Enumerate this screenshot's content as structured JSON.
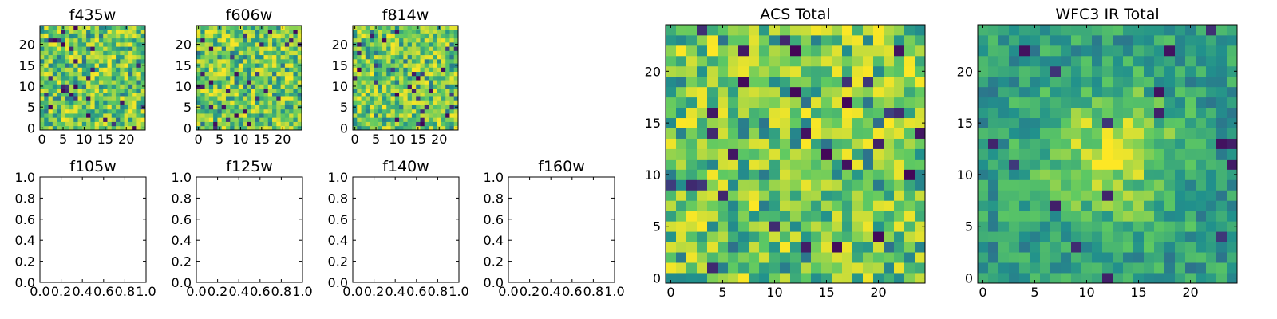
{
  "chart_data": [
    {
      "id": "f435w",
      "type": "heatmap",
      "title": "f435w",
      "grid": false,
      "colormap": "viridis",
      "description_values": "25x25 image of pixel values, random field",
      "xlim": [
        -0.5,
        24.5
      ],
      "ylim": [
        -0.5,
        24.5
      ],
      "xticks": [
        0,
        5,
        10,
        15,
        20
      ],
      "yticks": [
        0,
        5,
        10,
        15,
        20
      ],
      "xticklabels": [
        "0",
        "5",
        "10",
        "15",
        "20"
      ],
      "yticklabels": [
        "0",
        "5",
        "10",
        "15",
        "20"
      ],
      "seed": 11,
      "smooth": 0,
      "vmin": 0.0,
      "vmax": 1.0
    },
    {
      "id": "f606w",
      "type": "heatmap",
      "title": "f606w",
      "grid": false,
      "colormap": "viridis",
      "xlim": [
        -0.5,
        24.5
      ],
      "ylim": [
        -0.5,
        24.5
      ],
      "xticks": [
        0,
        5,
        10,
        15,
        20
      ],
      "yticks": [
        0,
        5,
        10,
        15,
        20
      ],
      "xticklabels": [
        "0",
        "5",
        "10",
        "15",
        "20"
      ],
      "yticklabels": [
        "0",
        "5",
        "10",
        "15",
        "20"
      ],
      "seed": 23,
      "smooth": 0,
      "vmin": 0.0,
      "vmax": 1.0
    },
    {
      "id": "f814w",
      "type": "heatmap",
      "title": "f814w",
      "grid": false,
      "colormap": "viridis",
      "xlim": [
        -0.5,
        24.5
      ],
      "ylim": [
        -0.5,
        24.5
      ],
      "xticks": [
        0,
        5,
        10,
        15,
        20
      ],
      "yticks": [
        0,
        5,
        10,
        15,
        20
      ],
      "xticklabels": [
        "0",
        "5",
        "10",
        "15",
        "20"
      ],
      "yticklabels": [
        "0",
        "5",
        "10",
        "15",
        "20"
      ],
      "seed": 37,
      "smooth": 0,
      "vmin": 0.0,
      "vmax": 1.0
    },
    {
      "id": "f105w",
      "type": "scatter",
      "title": "f105w",
      "points": [],
      "grid": false,
      "xlim": [
        0.0,
        1.0
      ],
      "ylim": [
        0.0,
        1.0
      ],
      "xticks": [
        0.0,
        0.2,
        0.4,
        0.6,
        0.8,
        1.0
      ],
      "yticks": [
        0.0,
        0.2,
        0.4,
        0.6,
        0.8,
        1.0
      ],
      "xticklabels": [
        "0.0",
        "0.2",
        "0.4",
        "0.6",
        "0.8",
        "1.0"
      ],
      "yticklabels": [
        "0.0",
        "0.2",
        "0.4",
        "0.6",
        "0.8",
        "1.0"
      ]
    },
    {
      "id": "f125w",
      "type": "scatter",
      "title": "f125w",
      "points": [],
      "grid": false,
      "xlim": [
        0.0,
        1.0
      ],
      "ylim": [
        0.0,
        1.0
      ],
      "xticks": [
        0.0,
        0.2,
        0.4,
        0.6,
        0.8,
        1.0
      ],
      "yticks": [
        0.0,
        0.2,
        0.4,
        0.6,
        0.8,
        1.0
      ],
      "xticklabels": [
        "0.0",
        "0.2",
        "0.4",
        "0.6",
        "0.8",
        "1.0"
      ],
      "yticklabels": [
        "0.0",
        "0.2",
        "0.4",
        "0.6",
        "0.8",
        "1.0"
      ]
    },
    {
      "id": "f140w",
      "type": "scatter",
      "title": "f140w",
      "points": [],
      "grid": false,
      "xlim": [
        0.0,
        1.0
      ],
      "ylim": [
        0.0,
        1.0
      ],
      "xticks": [
        0.0,
        0.2,
        0.4,
        0.6,
        0.8,
        1.0
      ],
      "yticks": [
        0.0,
        0.2,
        0.4,
        0.6,
        0.8,
        1.0
      ],
      "xticklabels": [
        "0.0",
        "0.2",
        "0.4",
        "0.6",
        "0.8",
        "1.0"
      ],
      "yticklabels": [
        "0.0",
        "0.2",
        "0.4",
        "0.6",
        "0.8",
        "1.0"
      ]
    },
    {
      "id": "f160w",
      "type": "scatter",
      "title": "f160w",
      "points": [],
      "grid": false,
      "xlim": [
        0.0,
        1.0
      ],
      "ylim": [
        0.0,
        1.0
      ],
      "xticks": [
        0.0,
        0.2,
        0.4,
        0.6,
        0.8,
        1.0
      ],
      "yticks": [
        0.0,
        0.2,
        0.4,
        0.6,
        0.8,
        1.0
      ],
      "xticklabels": [
        "0.0",
        "0.2",
        "0.4",
        "0.6",
        "0.8",
        "1.0"
      ],
      "yticklabels": [
        "0.0",
        "0.2",
        "0.4",
        "0.6",
        "0.8",
        "1.0"
      ]
    },
    {
      "id": "acs-total",
      "type": "heatmap",
      "title": "ACS Total",
      "grid": false,
      "colormap": "viridis",
      "xlim": [
        -0.5,
        24.5
      ],
      "ylim": [
        -0.5,
        24.5
      ],
      "xticks": [
        0,
        5,
        10,
        15,
        20
      ],
      "yticks": [
        0,
        5,
        10,
        15,
        20
      ],
      "xticklabels": [
        "0",
        "5",
        "10",
        "15",
        "20"
      ],
      "yticklabels": [
        "0",
        "5",
        "10",
        "15",
        "20"
      ],
      "seed": 53,
      "smooth": 0,
      "vmin": 0.0,
      "vmax": 1.0
    },
    {
      "id": "wfc3-ir-total",
      "type": "heatmap",
      "title": "WFC3 IR Total",
      "grid": false,
      "colormap": "viridis",
      "xlim": [
        -0.5,
        24.5
      ],
      "ylim": [
        -0.5,
        24.5
      ],
      "xticks": [
        0,
        5,
        10,
        15,
        20
      ],
      "yticks": [
        0,
        5,
        10,
        15,
        20
      ],
      "xticklabels": [
        "0",
        "5",
        "10",
        "15",
        "20"
      ],
      "yticklabels": [
        "0",
        "5",
        "10",
        "15",
        "20"
      ],
      "seed": 71,
      "smooth": 1,
      "source_center": [
        12,
        12
      ],
      "vmin": 0.0,
      "vmax": 1.0
    }
  ],
  "colors": {
    "axes": "#000000",
    "background": "#ffffff",
    "viridis": [
      "#440154",
      "#3b528b",
      "#21918c",
      "#5ec962",
      "#fde725"
    ]
  }
}
